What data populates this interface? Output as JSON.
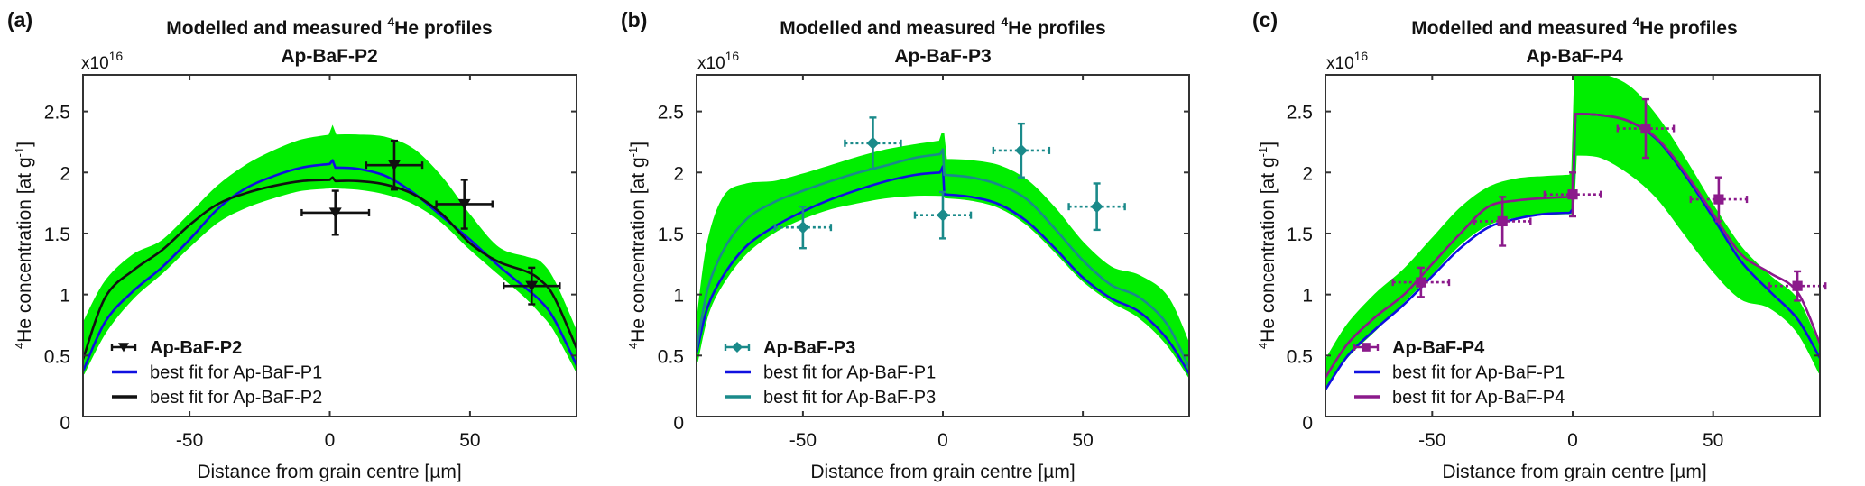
{
  "colors": {
    "envelope": "#00ee00",
    "p1": "#1010e0",
    "p2": "#111111",
    "p3": "#1a8a8a",
    "p4": "#8b1a8b",
    "axis": "#333333"
  },
  "chart_data": [
    {
      "type": "line",
      "panel_label": "(a)",
      "title": "Modelled and measured 4He profiles",
      "title_main": "Modelled and measured ",
      "title_sup": "4",
      "title_end": "He profiles",
      "subtitle": "Ap-BaF-P2",
      "exponent_label": "x10",
      "exponent_sup": "16",
      "xlabel": "Distance from grain centre [µm]",
      "ylabel": "4He concentration [at g-1]",
      "ylabel_sup": "4",
      "ylabel_main": "He concentration [at g",
      "ylabel_sup2": "-1",
      "ylabel_end": "]",
      "xlim": [
        -88,
        88
      ],
      "ylim": [
        0,
        2.8
      ],
      "xticks": [
        -50,
        0,
        50
      ],
      "xtick_labels": [
        "-50",
        "0",
        "50"
      ],
      "yticks": [
        0,
        0.5,
        1,
        1.5,
        2,
        2.5
      ],
      "ytick_labels": [
        "0",
        "0.5",
        "1",
        "1.5",
        "2",
        "2.5"
      ],
      "legend": {
        "placement": "lower-left",
        "entries": [
          {
            "label": "Ap-BaF-P2",
            "kind": "marker",
            "series": "measured"
          },
          {
            "label": "best fit for Ap-BaF-P1",
            "kind": "line",
            "series": "p1"
          },
          {
            "label": "best fit for Ap-BaF-P2",
            "kind": "line",
            "series": "fit"
          }
        ]
      },
      "envelope": {
        "x": [
          -88,
          -80,
          -70,
          -60,
          -50,
          -40,
          -30,
          -20,
          -10,
          0,
          1,
          2,
          10,
          20,
          30,
          40,
          50,
          60,
          70,
          75,
          80,
          88
        ],
        "upper": [
          0.75,
          1.1,
          1.32,
          1.43,
          1.65,
          1.88,
          2.05,
          2.17,
          2.26,
          2.3,
          2.36,
          2.3,
          2.3,
          2.28,
          2.18,
          1.95,
          1.64,
          1.38,
          1.3,
          1.26,
          1.1,
          0.68
        ],
        "lower": [
          0.35,
          0.7,
          0.98,
          1.18,
          1.4,
          1.6,
          1.72,
          1.8,
          1.86,
          1.88,
          1.88,
          1.88,
          1.87,
          1.83,
          1.75,
          1.6,
          1.38,
          1.18,
          0.98,
          0.86,
          0.72,
          0.38
        ]
      },
      "series": [
        {
          "name": "best fit for Ap-BaF-P1",
          "key": "p1",
          "x": [
            -88,
            -80,
            -70,
            -60,
            -50,
            -40,
            -30,
            -20,
            -10,
            0,
            1,
            2,
            10,
            20,
            30,
            40,
            50,
            60,
            70,
            75,
            80,
            88
          ],
          "y": [
            0.37,
            0.78,
            1.03,
            1.22,
            1.45,
            1.7,
            1.87,
            1.97,
            2.04,
            2.07,
            2.1,
            2.04,
            2.03,
            1.97,
            1.83,
            1.64,
            1.45,
            1.24,
            1.05,
            0.95,
            0.8,
            0.42
          ]
        },
        {
          "name": "best fit for Ap-BaF-P2",
          "key": "fit",
          "x": [
            -88,
            -80,
            -70,
            -60,
            -50,
            -40,
            -30,
            -20,
            -10,
            0,
            1,
            2,
            10,
            20,
            30,
            40,
            50,
            60,
            70,
            75,
            80,
            88
          ],
          "y": [
            0.47,
            0.98,
            1.2,
            1.36,
            1.57,
            1.74,
            1.83,
            1.89,
            1.93,
            1.94,
            1.96,
            1.93,
            1.93,
            1.9,
            1.82,
            1.66,
            1.42,
            1.27,
            1.19,
            1.12,
            0.98,
            0.56
          ]
        }
      ],
      "measured": {
        "name": "Ap-BaF-P2",
        "marker": "triangle-down",
        "key": "p2",
        "points": [
          {
            "x": 2,
            "y": 1.67,
            "xerr": 12,
            "yerr": 0.18
          },
          {
            "x": 23,
            "y": 2.06,
            "xerr": 10,
            "yerr": 0.2
          },
          {
            "x": 48,
            "y": 1.74,
            "xerr": 10,
            "yerr": 0.2
          },
          {
            "x": 72,
            "y": 1.07,
            "xerr": 10,
            "yerr": 0.15
          }
        ]
      }
    },
    {
      "type": "line",
      "panel_label": "(b)",
      "title": "Modelled and measured 4He profiles",
      "title_main": "Modelled and measured ",
      "title_sup": "4",
      "title_end": "He profiles",
      "subtitle": "Ap-BaF-P3",
      "exponent_label": "x10",
      "exponent_sup": "16",
      "xlabel": "Distance from grain centre [µm]",
      "ylabel": "4He concentration [at g-1]",
      "ylabel_sup": "4",
      "ylabel_main": "He concentration [at g",
      "ylabel_sup2": "-1",
      "ylabel_end": "]",
      "xlim": [
        -88,
        88
      ],
      "ylim": [
        0,
        2.8
      ],
      "xticks": [
        -50,
        0,
        50
      ],
      "xtick_labels": [
        "-50",
        "0",
        "50"
      ],
      "yticks": [
        0,
        0.5,
        1,
        1.5,
        2,
        2.5
      ],
      "ytick_labels": [
        "0",
        "0.5",
        "1",
        "1.5",
        "2",
        "2.5"
      ],
      "legend": {
        "placement": "lower-left",
        "entries": [
          {
            "label": "Ap-BaF-P3",
            "kind": "marker",
            "series": "measured"
          },
          {
            "label": "best fit for Ap-BaF-P1",
            "kind": "line",
            "series": "p1"
          },
          {
            "label": "best fit for Ap-BaF-P3",
            "kind": "line",
            "series": "fit"
          }
        ]
      },
      "envelope": {
        "x": [
          -88,
          -84,
          -78,
          -70,
          -60,
          -50,
          -40,
          -30,
          -20,
          -10,
          -1,
          0,
          1,
          10,
          20,
          30,
          40,
          50,
          60,
          70,
          80,
          88
        ],
        "upper": [
          0.7,
          1.4,
          1.8,
          1.9,
          1.92,
          1.98,
          2.05,
          2.12,
          2.18,
          2.22,
          2.25,
          2.32,
          2.1,
          2.09,
          2.05,
          1.93,
          1.7,
          1.42,
          1.22,
          1.15,
          0.98,
          0.58
        ],
        "lower": [
          0.45,
          0.85,
          1.12,
          1.35,
          1.52,
          1.63,
          1.71,
          1.76,
          1.8,
          1.82,
          1.82,
          1.82,
          1.8,
          1.78,
          1.72,
          1.58,
          1.36,
          1.12,
          0.95,
          0.82,
          0.6,
          0.33
        ]
      },
      "series": [
        {
          "name": "best fit for Ap-BaF-P1",
          "key": "p1",
          "x": [
            -88,
            -84,
            -78,
            -70,
            -60,
            -50,
            -40,
            -30,
            -20,
            -10,
            -1,
            0,
            0.5,
            1,
            10,
            20,
            30,
            40,
            50,
            60,
            70,
            80,
            88
          ],
          "y": [
            0.52,
            0.9,
            1.17,
            1.4,
            1.56,
            1.68,
            1.78,
            1.86,
            1.93,
            1.98,
            2.0,
            2.05,
            1.82,
            1.82,
            1.8,
            1.74,
            1.6,
            1.38,
            1.14,
            0.97,
            0.86,
            0.64,
            0.35
          ]
        },
        {
          "name": "best fit for Ap-BaF-P3",
          "key": "fit",
          "x": [
            -88,
            -84,
            -78,
            -70,
            -60,
            -50,
            -40,
            -30,
            -20,
            -10,
            -1,
            0,
            0.5,
            1,
            10,
            20,
            30,
            40,
            50,
            60,
            70,
            80,
            88
          ],
          "y": [
            0.55,
            1.05,
            1.38,
            1.62,
            1.76,
            1.85,
            1.93,
            2.0,
            2.06,
            2.12,
            2.15,
            2.19,
            1.98,
            1.98,
            1.96,
            1.9,
            1.78,
            1.54,
            1.28,
            1.08,
            0.98,
            0.76,
            0.4
          ]
        }
      ],
      "measured": {
        "name": "Ap-BaF-P3",
        "marker": "diamond",
        "key": "p3",
        "points": [
          {
            "x": -50,
            "y": 1.55,
            "xerr": 10,
            "yerr": 0.17
          },
          {
            "x": -25,
            "y": 2.24,
            "xerr": 10,
            "yerr": 0.21
          },
          {
            "x": 0,
            "y": 1.65,
            "xerr": 10,
            "yerr": 0.19
          },
          {
            "x": 28,
            "y": 2.18,
            "xerr": 10,
            "yerr": 0.22
          },
          {
            "x": 55,
            "y": 1.72,
            "xerr": 10,
            "yerr": 0.19
          }
        ]
      }
    },
    {
      "type": "line",
      "panel_label": "(c)",
      "title": "Modelled and measured 4He profiles",
      "title_main": "Modelled and measured ",
      "title_sup": "4",
      "title_end": "He profiles",
      "subtitle": "Ap-BaF-P4",
      "exponent_label": "x10",
      "exponent_sup": "16",
      "xlabel": "Distance from grain centre [µm]",
      "ylabel": "4He concentration [at g-1]",
      "ylabel_sup": "4",
      "ylabel_main": "He concentration [at g",
      "ylabel_sup2": "-1",
      "ylabel_end": "]",
      "xlim": [
        -88,
        88
      ],
      "ylim": [
        0,
        2.8
      ],
      "xticks": [
        -50,
        0,
        50
      ],
      "xtick_labels": [
        "-50",
        "0",
        "50"
      ],
      "yticks": [
        0,
        0.5,
        1,
        1.5,
        2,
        2.5
      ],
      "ytick_labels": [
        "0",
        "0.5",
        "1",
        "1.5",
        "2",
        "2.5"
      ],
      "legend": {
        "placement": "lower-left",
        "entries": [
          {
            "label": "Ap-BaF-P4",
            "kind": "marker",
            "series": "measured"
          },
          {
            "label": "best fit for Ap-BaF-P1",
            "kind": "line",
            "series": "p1"
          },
          {
            "label": "best fit for Ap-BaF-P4",
            "kind": "line",
            "series": "fit"
          }
        ]
      },
      "envelope": {
        "x": [
          -88,
          -80,
          -70,
          -60,
          -50,
          -40,
          -30,
          -20,
          -10,
          -1,
          0,
          1,
          10,
          20,
          30,
          40,
          50,
          60,
          70,
          80,
          88
        ],
        "upper": [
          0.45,
          0.75,
          1.0,
          1.2,
          1.45,
          1.7,
          1.87,
          1.94,
          1.96,
          1.97,
          2.0,
          2.8,
          2.8,
          2.7,
          2.45,
          2.1,
          1.72,
          1.38,
          1.15,
          0.95,
          0.55
        ],
        "lower": [
          0.25,
          0.5,
          0.72,
          0.95,
          1.18,
          1.42,
          1.58,
          1.64,
          1.66,
          1.67,
          1.67,
          2.15,
          2.13,
          2.0,
          1.8,
          1.5,
          1.2,
          0.97,
          0.9,
          0.7,
          0.36
        ]
      },
      "series": [
        {
          "name": "best fit for Ap-BaF-P1",
          "key": "p1",
          "x": [
            -88,
            -80,
            -70,
            -60,
            -50,
            -40,
            -30,
            -20,
            -10,
            -1,
            0,
            1,
            10,
            20,
            30,
            40,
            50,
            60,
            70,
            80,
            88
          ],
          "y": [
            0.22,
            0.5,
            0.72,
            0.92,
            1.15,
            1.38,
            1.55,
            1.62,
            1.66,
            1.67,
            1.7,
            2.48,
            2.47,
            2.42,
            2.27,
            1.98,
            1.63,
            1.27,
            1.03,
            0.8,
            0.48
          ]
        },
        {
          "name": "best fit for Ap-BaF-P4",
          "key": "fit",
          "x": [
            -88,
            -80,
            -70,
            -60,
            -50,
            -40,
            -30,
            -20,
            -10,
            -1,
            0,
            1,
            10,
            20,
            30,
            40,
            50,
            60,
            70,
            80,
            88
          ],
          "y": [
            0.32,
            0.6,
            0.82,
            1.0,
            1.25,
            1.5,
            1.72,
            1.77,
            1.79,
            1.8,
            1.82,
            2.48,
            2.47,
            2.42,
            2.28,
            2.0,
            1.66,
            1.33,
            1.18,
            1.02,
            0.6
          ]
        }
      ],
      "measured": {
        "name": "Ap-BaF-P4",
        "marker": "square",
        "key": "p4",
        "points": [
          {
            "x": -54,
            "y": 1.1,
            "xerr": 10,
            "yerr": 0.12
          },
          {
            "x": -25,
            "y": 1.6,
            "xerr": 10,
            "yerr": 0.2
          },
          {
            "x": 0,
            "y": 1.82,
            "xerr": 10,
            "yerr": 0.18
          },
          {
            "x": 26,
            "y": 2.36,
            "xerr": 10,
            "yerr": 0.24
          },
          {
            "x": 52,
            "y": 1.78,
            "xerr": 10,
            "yerr": 0.18
          },
          {
            "x": 80,
            "y": 1.07,
            "xerr": 10,
            "yerr": 0.12
          }
        ]
      }
    }
  ]
}
